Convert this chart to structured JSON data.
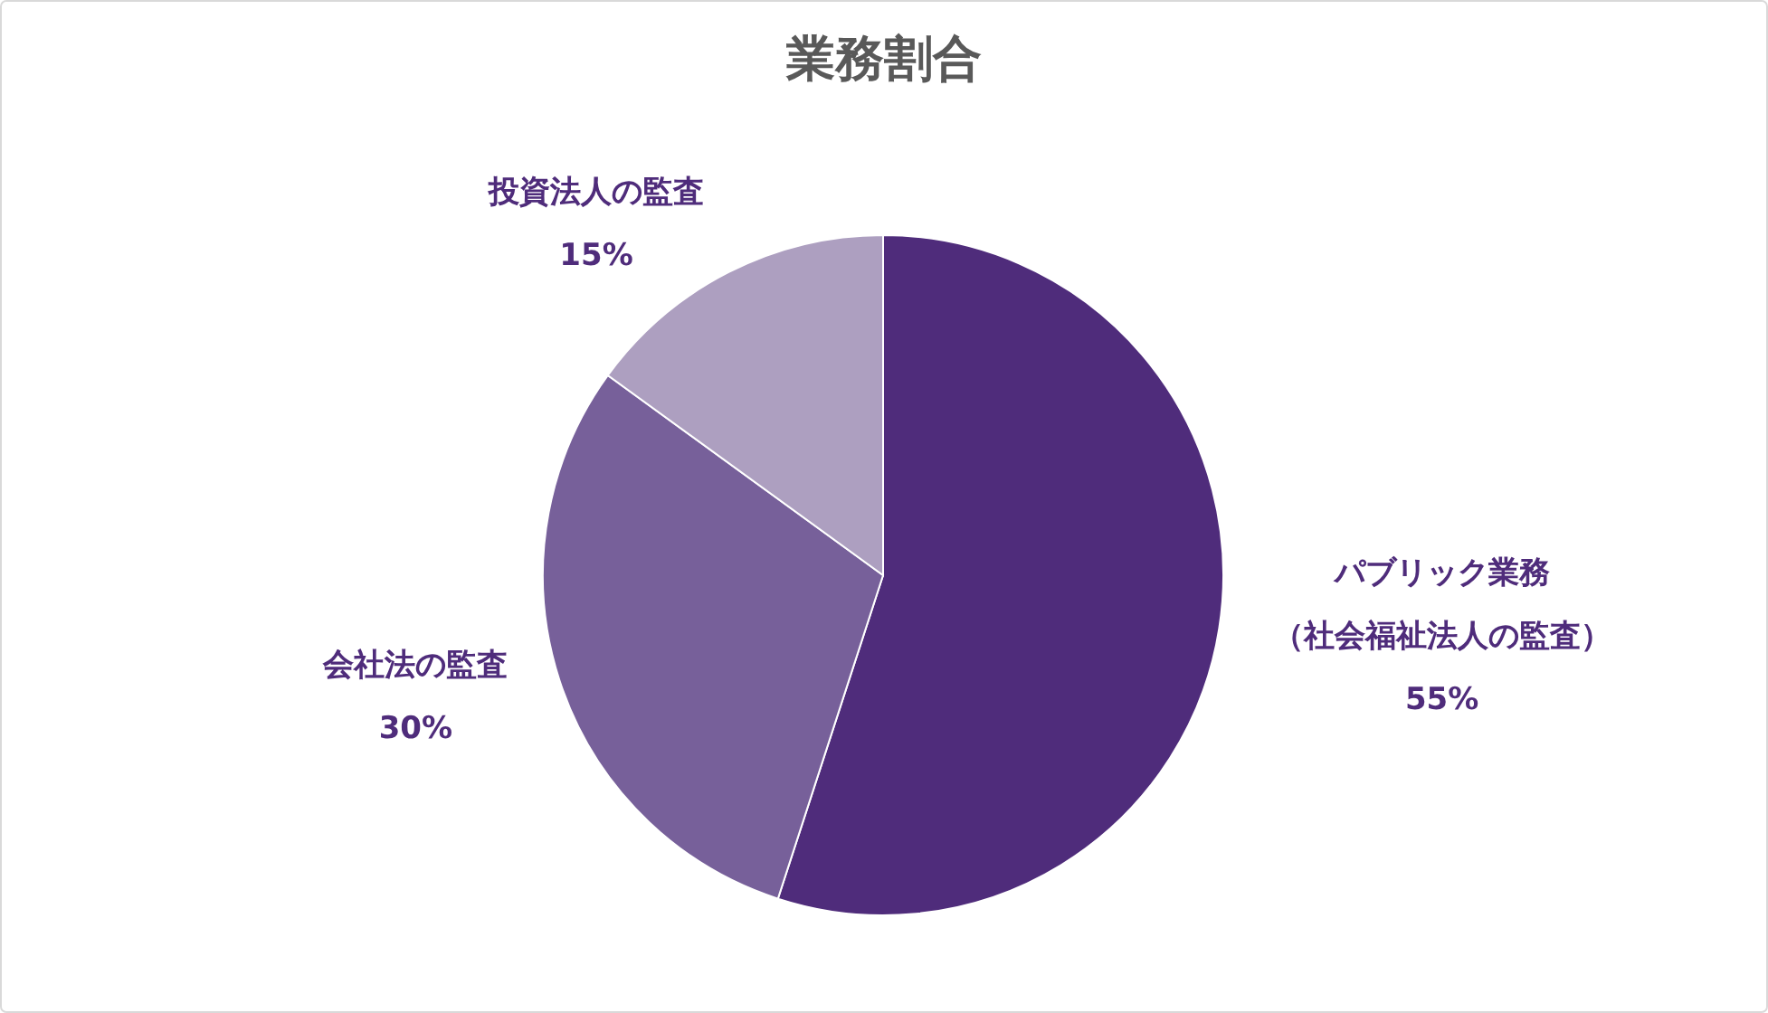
{
  "chart_data": {
    "type": "pie",
    "title": "業務割合",
    "categories": [
      "パブリック業務（社会福祉法人の監査）",
      "会社法の監査",
      "投資法人の監査"
    ],
    "values": [
      55,
      30,
      15
    ],
    "colors": [
      "#4f2c7b",
      "#77609a",
      "#ad9fc0"
    ],
    "value_labels": [
      "55%",
      "30%",
      "15%"
    ]
  }
}
